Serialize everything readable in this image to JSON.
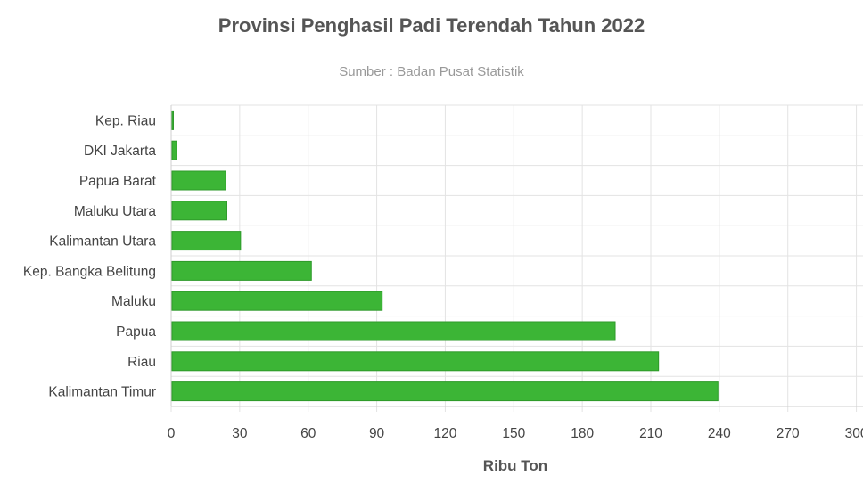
{
  "chart_data": {
    "type": "bar",
    "orientation": "horizontal",
    "title": "Provinsi Penghasil Padi Terendah Tahun 2022",
    "subtitle": "Sumber : Badan Pusat Statistik",
    "xlabel": "Ribu Ton",
    "ylabel": "",
    "categories": [
      "Kep. Riau",
      "DKI Jakarta",
      "Papua Barat",
      "Maluku Utara",
      "Kalimantan Utara",
      "Kep. Bangka Belitung",
      "Maluku",
      "Papua ",
      "Riau",
      "Kalimantan Timur"
    ],
    "values": [
      0.5,
      2,
      23.5,
      24,
      30,
      61,
      92,
      194,
      213,
      239
    ],
    "xlim": [
      0,
      300
    ],
    "ticks": [
      "0",
      "30",
      "60",
      "90",
      "120",
      "150",
      "180",
      "210",
      "240",
      "270",
      "300"
    ],
    "grid": true,
    "legend": "none",
    "bar_color": "#3cb536",
    "bar_border_color": "#2e9a2a"
  }
}
